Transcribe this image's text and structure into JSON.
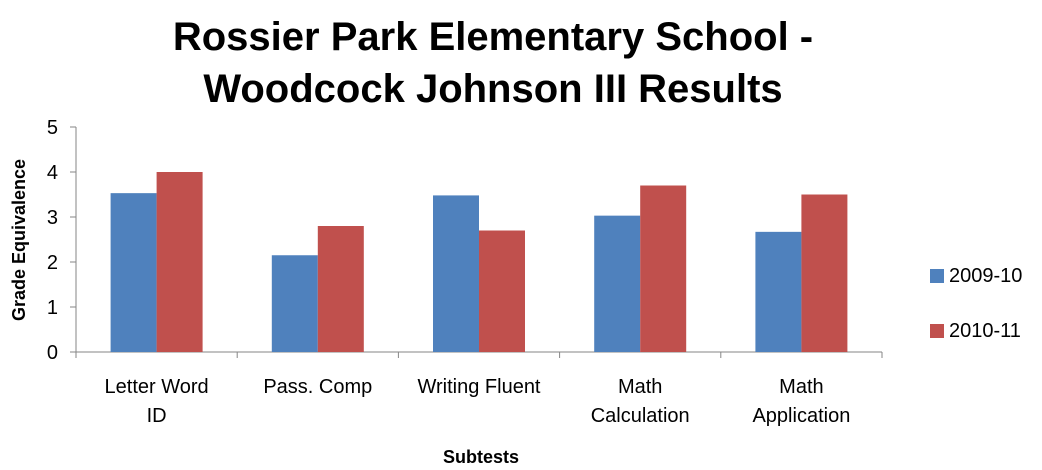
{
  "chart_data": {
    "type": "bar",
    "title": [
      "Rossier Park Elementary School -",
      "Woodcock Johnson III Results"
    ],
    "xlabel": "Subtests",
    "ylabel": "Grade Equivalence",
    "ylim": [
      0,
      5
    ],
    "yticks": [
      "0",
      "1",
      "2",
      "3",
      "4",
      "5"
    ],
    "grid": false,
    "legend_position": "right",
    "categories": [
      [
        "Letter Word",
        "ID"
      ],
      [
        "Pass. Comp"
      ],
      [
        "Writing Fluent"
      ],
      [
        "Math",
        "Calculation"
      ],
      [
        "Math",
        "Application"
      ]
    ],
    "series": [
      {
        "name": "2009-10",
        "color": "#4F81BD",
        "values": [
          3.53,
          2.15,
          3.48,
          3.03,
          2.67
        ]
      },
      {
        "name": "2010-11",
        "color": "#C0504D",
        "values": [
          4.0,
          2.8,
          2.7,
          3.7,
          3.5
        ]
      }
    ]
  }
}
